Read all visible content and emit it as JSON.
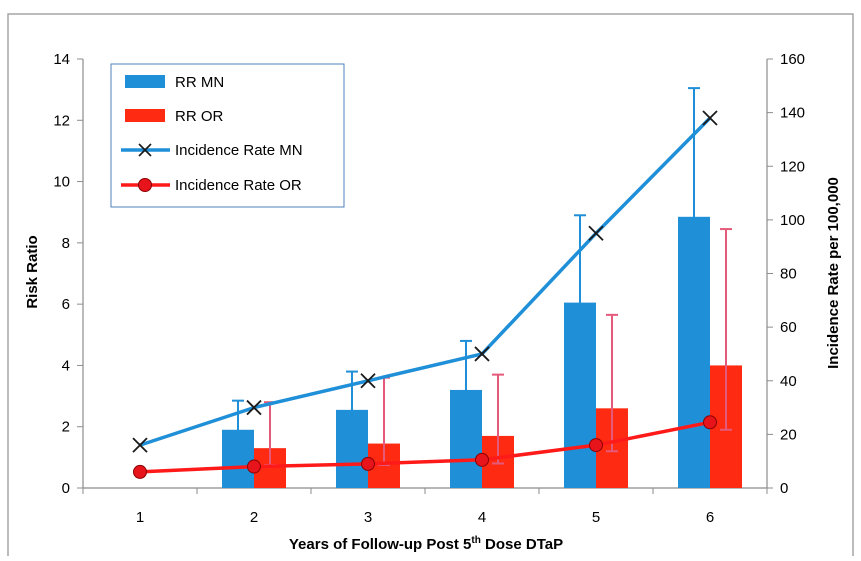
{
  "chart_data": {
    "type": "bar",
    "title": "",
    "categories": [
      "1",
      "2",
      "3",
      "4",
      "5",
      "6"
    ],
    "xlabel": "Years of Follow-up Post 5",
    "xlabel_sup": "th",
    "xlabel_suffix": " Dose DTaP",
    "ylabel": "Risk Ratio",
    "y2label": "Incidence Rate per 100,000",
    "ylim": [
      0,
      14
    ],
    "y2lim": [
      0,
      160
    ],
    "yticks": [
      "0",
      "2",
      "4",
      "6",
      "8",
      "10",
      "12",
      "14"
    ],
    "y2ticks": [
      "0",
      "20",
      "40",
      "60",
      "80",
      "100",
      "120",
      "140",
      "160"
    ],
    "legend_position": "top-left",
    "grid": false,
    "series": [
      {
        "name": "RR MN",
        "kind": "bar",
        "axis": "left",
        "color": "#1f8fd8",
        "values": [
          null,
          1.9,
          2.55,
          3.2,
          6.05,
          8.85
        ],
        "err_low": [
          null,
          1.25,
          1.75,
          2.15,
          4.15,
          6.05
        ],
        "err_high": [
          null,
          2.85,
          3.8,
          4.8,
          8.9,
          13.05
        ]
      },
      {
        "name": "RR OR",
        "kind": "bar",
        "axis": "left",
        "color": "#ff2a12",
        "err_color": "#e55a7a",
        "values": [
          null,
          1.3,
          1.45,
          1.7,
          2.6,
          4.0
        ],
        "err_low": [
          null,
          0.75,
          0.75,
          0.8,
          1.2,
          1.9
        ],
        "err_high": [
          null,
          2.8,
          3.6,
          3.7,
          5.65,
          8.45
        ]
      },
      {
        "name": "Incidence Rate MN",
        "kind": "line",
        "axis": "right",
        "color": "#1f8fd8",
        "marker": "x",
        "values": [
          16,
          30,
          40,
          50,
          95,
          138
        ]
      },
      {
        "name": "Incidence Rate OR",
        "kind": "line",
        "axis": "right",
        "color": "#ff1a1a",
        "marker": "circle",
        "values": [
          6,
          8,
          9,
          10.5,
          16,
          24.5
        ]
      }
    ]
  }
}
